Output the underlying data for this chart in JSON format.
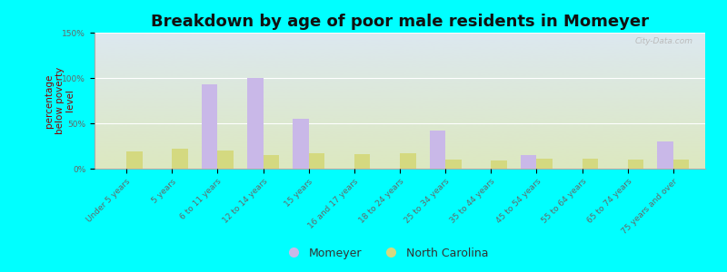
{
  "title": "Breakdown by age of poor male residents in Momeyer",
  "categories": [
    "Under 5 years",
    "5 years",
    "6 to 11 years",
    "12 to 14 years",
    "15 years",
    "16 and 17 years",
    "18 to 24 years",
    "25 to 34 years",
    "35 to 44 years",
    "45 to 54 years",
    "55 to 64 years",
    "65 to 74 years",
    "75 years and over"
  ],
  "momeyer": [
    0,
    0,
    93,
    100,
    55,
    0,
    0,
    42,
    0,
    15,
    0,
    0,
    30
  ],
  "nc": [
    19,
    22,
    20,
    15,
    17,
    16,
    17,
    10,
    9,
    11,
    11,
    10,
    10
  ],
  "momeyer_color": "#c9b8e8",
  "nc_color": "#d4d980",
  "ylabel": "percentage\nbelow poverty\nlevel",
  "ylim": [
    0,
    150
  ],
  "yticks": [
    0,
    50,
    100,
    150
  ],
  "ytick_labels": [
    "0%",
    "50%",
    "100%",
    "150%"
  ],
  "background_outer": "#00ffff",
  "background_chart_top": "#dce8f0",
  "background_chart_bottom": "#dde8c0",
  "title_fontsize": 13,
  "axis_label_fontsize": 7.5,
  "tick_fontsize": 6.5,
  "legend_fontsize": 9,
  "bar_width": 0.35,
  "watermark": "City-Data.com"
}
